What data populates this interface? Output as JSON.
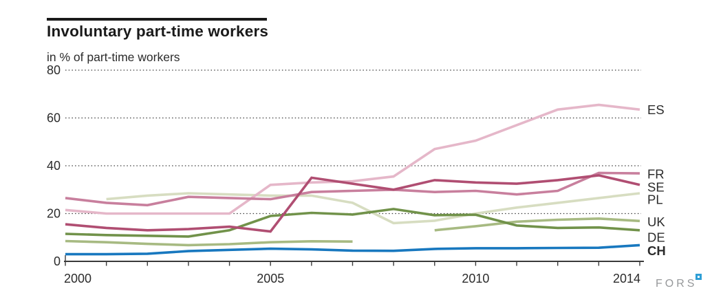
{
  "header": {
    "title": "Involuntary part-time workers",
    "subtitle": "in % of part-time workers"
  },
  "footer": {
    "logo_text": "FORS"
  },
  "chart_data": {
    "type": "line",
    "title": "Involuntary part-time workers",
    "ylabel": "in % of part-time workers",
    "ylim": [
      0,
      80
    ],
    "y_ticks": [
      0,
      20,
      40,
      60,
      80
    ],
    "grid": "horizontal dotted at 20/40/60/80",
    "legend_position": "right-end-labels",
    "x": [
      2000,
      2001,
      2002,
      2003,
      2004,
      2005,
      2006,
      2007,
      2008,
      2009,
      2010,
      2011,
      2012,
      2013,
      2014
    ],
    "x_tick_labels": [
      "2000",
      "2005",
      "2010",
      "2014"
    ],
    "x_tick_label_years": [
      2000,
      2005,
      2010,
      2014
    ],
    "series": [
      {
        "name": "ES",
        "color": "#e5b7c9",
        "bold_label": false,
        "values": [
          21.5,
          20,
          20,
          20,
          20,
          32,
          33,
          33.5,
          35.5,
          47,
          50.5,
          57,
          63.5,
          65.5,
          63.5
        ]
      },
      {
        "name": "FR",
        "color": "#c87f9d",
        "bold_label": false,
        "values": [
          26.5,
          24.5,
          23.5,
          27,
          26.5,
          26,
          29,
          29.5,
          30,
          29,
          29.5,
          28,
          29.5,
          37,
          36.8
        ]
      },
      {
        "name": "SE",
        "color": "#b04e72",
        "bold_label": false,
        "values": [
          15.5,
          14,
          13,
          13.5,
          14.5,
          12.5,
          35,
          32.5,
          30,
          34,
          33,
          32.5,
          34,
          36,
          32
        ]
      },
      {
        "name": "PL",
        "color": "#d7ddc1",
        "bold_label": false,
        "values": [
          null,
          26,
          27.5,
          28.5,
          28,
          27.5,
          27.5,
          24.5,
          16,
          17,
          20,
          22.5,
          24.5,
          26.5,
          28.5
        ]
      },
      {
        "name": "UK",
        "color": "#a7ba82",
        "bold_label": false,
        "values": [
          8.5,
          8,
          7.3,
          6.8,
          7.2,
          8,
          8.4,
          8.3,
          null,
          13,
          14.7,
          16.6,
          17.4,
          17.9,
          16.9
        ]
      },
      {
        "name": "DE",
        "color": "#71924a",
        "bold_label": false,
        "values": [
          11.5,
          11,
          10.7,
          10.4,
          13,
          19,
          20.3,
          19.6,
          21.9,
          19.3,
          19.5,
          15,
          14,
          14.2,
          13
        ]
      },
      {
        "name": "CH",
        "color": "#1878bf",
        "bold_label": true,
        "values": [
          3,
          3,
          3.2,
          4.3,
          4.8,
          5.3,
          5,
          4.5,
          4.4,
          5.2,
          5.5,
          5.5,
          5.6,
          5.7,
          6.8
        ]
      }
    ]
  }
}
